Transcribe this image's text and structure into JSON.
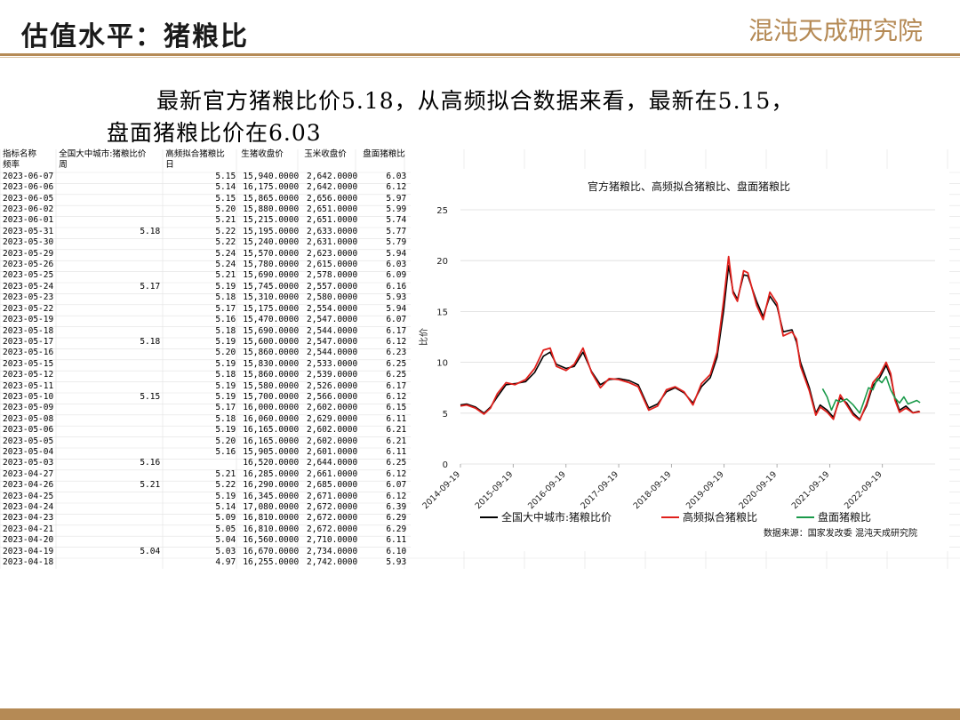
{
  "header": {
    "title": "估值水平：猪粮比",
    "logo_text": "混沌天成研究院"
  },
  "summary": {
    "line1": "最新官方猪粮比价5.18，从高频拟合数据来看，最新在5.15，",
    "line2": "盘面猪粮比价在6.03"
  },
  "table": {
    "header_row1": [
      "指标名称",
      "全国大中城市:猪粮比价",
      "高频拟合猪粮比",
      "生猪收盘价",
      "玉米收盘价",
      "盘面猪粮比"
    ],
    "header_row2": [
      "频率",
      "周",
      "日",
      "",
      "",
      ""
    ],
    "rows": [
      [
        "2023-06-07",
        "",
        "5.15",
        "15,940.0000",
        "2,642.0000",
        "6.03"
      ],
      [
        "2023-06-06",
        "",
        "5.14",
        "16,175.0000",
        "2,642.0000",
        "6.12"
      ],
      [
        "2023-06-05",
        "",
        "5.15",
        "15,865.0000",
        "2,656.0000",
        "5.97"
      ],
      [
        "2023-06-02",
        "",
        "5.20",
        "15,880.0000",
        "2,651.0000",
        "5.99"
      ],
      [
        "2023-06-01",
        "",
        "5.21",
        "15,215.0000",
        "2,651.0000",
        "5.74"
      ],
      [
        "2023-05-31",
        "5.18",
        "5.22",
        "15,195.0000",
        "2,633.0000",
        "5.77"
      ],
      [
        "2023-05-30",
        "",
        "5.22",
        "15,240.0000",
        "2,631.0000",
        "5.79"
      ],
      [
        "2023-05-29",
        "",
        "5.24",
        "15,570.0000",
        "2,623.0000",
        "5.94"
      ],
      [
        "2023-05-26",
        "",
        "5.24",
        "15,780.0000",
        "2,615.0000",
        "6.03"
      ],
      [
        "2023-05-25",
        "",
        "5.21",
        "15,690.0000",
        "2,578.0000",
        "6.09"
      ],
      [
        "2023-05-24",
        "5.17",
        "5.19",
        "15,745.0000",
        "2,557.0000",
        "6.16"
      ],
      [
        "2023-05-23",
        "",
        "5.18",
        "15,310.0000",
        "2,580.0000",
        "5.93"
      ],
      [
        "2023-05-22",
        "",
        "5.17",
        "15,175.0000",
        "2,554.0000",
        "5.94"
      ],
      [
        "2023-05-19",
        "",
        "5.16",
        "15,470.0000",
        "2,547.0000",
        "6.07"
      ],
      [
        "2023-05-18",
        "",
        "5.18",
        "15,690.0000",
        "2,544.0000",
        "6.17"
      ],
      [
        "2023-05-17",
        "5.18",
        "5.19",
        "15,600.0000",
        "2,547.0000",
        "6.12"
      ],
      [
        "2023-05-16",
        "",
        "5.20",
        "15,860.0000",
        "2,544.0000",
        "6.23"
      ],
      [
        "2023-05-15",
        "",
        "5.19",
        "15,830.0000",
        "2,533.0000",
        "6.25"
      ],
      [
        "2023-05-12",
        "",
        "5.18",
        "15,860.0000",
        "2,539.0000",
        "6.25"
      ],
      [
        "2023-05-11",
        "",
        "5.19",
        "15,580.0000",
        "2,526.0000",
        "6.17"
      ],
      [
        "2023-05-10",
        "5.15",
        "5.19",
        "15,700.0000",
        "2,566.0000",
        "6.12"
      ],
      [
        "2023-05-09",
        "",
        "5.17",
        "16,000.0000",
        "2,602.0000",
        "6.15"
      ],
      [
        "2023-05-08",
        "",
        "5.18",
        "16,060.0000",
        "2,629.0000",
        "6.11"
      ],
      [
        "2023-05-06",
        "",
        "5.19",
        "16,165.0000",
        "2,602.0000",
        "6.21"
      ],
      [
        "2023-05-05",
        "",
        "5.20",
        "16,165.0000",
        "2,602.0000",
        "6.21"
      ],
      [
        "2023-05-04",
        "",
        "5.16",
        "15,905.0000",
        "2,601.0000",
        "6.11"
      ],
      [
        "2023-05-03",
        "5.16",
        "",
        "16,520.0000",
        "2,644.0000",
        "6.25"
      ],
      [
        "2023-04-27",
        "",
        "5.21",
        "16,285.0000",
        "2,661.0000",
        "6.12"
      ],
      [
        "2023-04-26",
        "5.21",
        "5.22",
        "16,290.0000",
        "2,685.0000",
        "6.07"
      ],
      [
        "2023-04-25",
        "",
        "5.19",
        "16,345.0000",
        "2,671.0000",
        "6.12"
      ],
      [
        "2023-04-24",
        "",
        "5.14",
        "17,080.0000",
        "2,672.0000",
        "6.39"
      ],
      [
        "2023-04-23",
        "",
        "5.09",
        "16,810.0000",
        "2,672.0000",
        "6.29"
      ],
      [
        "2023-04-21",
        "",
        "5.05",
        "16,810.0000",
        "2,672.0000",
        "6.29"
      ],
      [
        "2023-04-20",
        "",
        "5.04",
        "16,560.0000",
        "2,710.0000",
        "6.11"
      ],
      [
        "2023-04-19",
        "5.04",
        "5.03",
        "16,670.0000",
        "2,734.0000",
        "6.10"
      ],
      [
        "2023-04-18",
        "",
        "4.97",
        "16,255.0000",
        "2,742.0000",
        "5.93"
      ]
    ]
  },
  "chart_data": {
    "type": "line",
    "title": "官方猪粮比、高频拟合猪粮比、盘面猪粮比",
    "ylabel": "比价",
    "xlabel": "",
    "ylim": [
      0,
      25
    ],
    "yticks": [
      0,
      5,
      10,
      15,
      20,
      25
    ],
    "xlim": [
      "2014-09-19",
      "2023-09-19"
    ],
    "xticks": [
      "2014-09-19",
      "2015-09-19",
      "2016-09-19",
      "2017-09-19",
      "2018-09-19",
      "2019-09-19",
      "2020-09-19",
      "2021-09-19",
      "2022-09-19"
    ],
    "legend_position": "bottom",
    "source": "数据来源：国家发改委  混沌天成研究院",
    "series": [
      {
        "name": "全国大中城市:猪粮比价",
        "color": "#000000",
        "points": [
          [
            "2014-09-19",
            5.8
          ],
          [
            "2014-11-01",
            5.9
          ],
          [
            "2015-01-01",
            5.6
          ],
          [
            "2015-03-01",
            5.0
          ],
          [
            "2015-04-15",
            5.6
          ],
          [
            "2015-06-01",
            6.6
          ],
          [
            "2015-08-01",
            7.8
          ],
          [
            "2015-10-01",
            7.9
          ],
          [
            "2015-12-15",
            8.1
          ],
          [
            "2016-02-15",
            9.0
          ],
          [
            "2016-04-15",
            10.6
          ],
          [
            "2016-06-01",
            11.0
          ],
          [
            "2016-07-15",
            9.8
          ],
          [
            "2016-09-19",
            9.4
          ],
          [
            "2016-11-15",
            9.6
          ],
          [
            "2017-01-15",
            11.0
          ],
          [
            "2017-03-15",
            9.1
          ],
          [
            "2017-05-15",
            7.8
          ],
          [
            "2017-07-15",
            8.3
          ],
          [
            "2017-09-19",
            8.4
          ],
          [
            "2017-12-01",
            8.2
          ],
          [
            "2018-02-01",
            7.8
          ],
          [
            "2018-04-15",
            5.5
          ],
          [
            "2018-06-15",
            5.9
          ],
          [
            "2018-08-15",
            7.1
          ],
          [
            "2018-10-15",
            7.5
          ],
          [
            "2018-12-15",
            7.0
          ],
          [
            "2019-02-15",
            6.0
          ],
          [
            "2019-04-15",
            7.6
          ],
          [
            "2019-06-15",
            8.5
          ],
          [
            "2019-08-01",
            10.5
          ],
          [
            "2019-09-15",
            15.0
          ],
          [
            "2019-10-20",
            19.5
          ],
          [
            "2019-11-20",
            17.0
          ],
          [
            "2019-12-20",
            16.2
          ],
          [
            "2020-02-01",
            18.6
          ],
          [
            "2020-03-01",
            18.5
          ],
          [
            "2020-05-01",
            16.0
          ],
          [
            "2020-06-15",
            14.5
          ],
          [
            "2020-08-01",
            16.5
          ],
          [
            "2020-09-19",
            15.5
          ],
          [
            "2020-11-01",
            13.0
          ],
          [
            "2021-01-01",
            13.2
          ],
          [
            "2021-02-01",
            12.0
          ],
          [
            "2021-03-01",
            10.0
          ],
          [
            "2021-05-01",
            7.5
          ],
          [
            "2021-06-15",
            5.0
          ],
          [
            "2021-07-15",
            5.8
          ],
          [
            "2021-09-01",
            5.3
          ],
          [
            "2021-10-15",
            4.6
          ],
          [
            "2021-12-01",
            6.5
          ],
          [
            "2022-01-15",
            6.0
          ],
          [
            "2022-03-01",
            5.0
          ],
          [
            "2022-04-15",
            4.4
          ],
          [
            "2022-06-01",
            5.7
          ],
          [
            "2022-07-15",
            7.7
          ],
          [
            "2022-09-01",
            8.5
          ],
          [
            "2022-10-15",
            9.7
          ],
          [
            "2022-11-15",
            8.6
          ],
          [
            "2022-12-15",
            6.5
          ],
          [
            "2023-01-15",
            5.3
          ],
          [
            "2023-03-01",
            5.7
          ],
          [
            "2023-04-19",
            5.04
          ],
          [
            "2023-05-31",
            5.18
          ]
        ]
      },
      {
        "name": "高频拟合猪粮比",
        "color": "#e0201c",
        "points": [
          [
            "2014-09-19",
            5.7
          ],
          [
            "2014-11-01",
            5.8
          ],
          [
            "2015-01-01",
            5.5
          ],
          [
            "2015-03-01",
            4.9
          ],
          [
            "2015-04-15",
            5.5
          ],
          [
            "2015-06-01",
            6.9
          ],
          [
            "2015-08-01",
            8.0
          ],
          [
            "2015-10-01",
            7.8
          ],
          [
            "2015-12-15",
            8.3
          ],
          [
            "2016-02-15",
            9.4
          ],
          [
            "2016-04-15",
            11.2
          ],
          [
            "2016-06-01",
            11.4
          ],
          [
            "2016-07-15",
            9.6
          ],
          [
            "2016-09-19",
            9.2
          ],
          [
            "2016-11-15",
            9.8
          ],
          [
            "2017-01-15",
            11.4
          ],
          [
            "2017-03-15",
            9.0
          ],
          [
            "2017-05-15",
            7.5
          ],
          [
            "2017-07-15",
            8.4
          ],
          [
            "2017-09-19",
            8.3
          ],
          [
            "2017-12-01",
            8.0
          ],
          [
            "2018-02-01",
            7.6
          ],
          [
            "2018-04-15",
            5.3
          ],
          [
            "2018-06-15",
            5.7
          ],
          [
            "2018-08-15",
            7.3
          ],
          [
            "2018-10-15",
            7.6
          ],
          [
            "2018-12-15",
            7.1
          ],
          [
            "2019-02-15",
            5.8
          ],
          [
            "2019-04-15",
            7.9
          ],
          [
            "2019-06-15",
            8.8
          ],
          [
            "2019-08-01",
            11.0
          ],
          [
            "2019-09-15",
            16.0
          ],
          [
            "2019-10-20",
            20.4
          ],
          [
            "2019-11-20",
            16.8
          ],
          [
            "2019-12-20",
            16.0
          ],
          [
            "2020-02-01",
            19.0
          ],
          [
            "2020-03-01",
            18.8
          ],
          [
            "2020-05-01",
            15.6
          ],
          [
            "2020-06-15",
            14.2
          ],
          [
            "2020-08-01",
            16.9
          ],
          [
            "2020-09-19",
            15.8
          ],
          [
            "2020-11-01",
            12.6
          ],
          [
            "2021-01-01",
            13.0
          ],
          [
            "2021-02-01",
            12.3
          ],
          [
            "2021-03-01",
            9.6
          ],
          [
            "2021-05-01",
            7.2
          ],
          [
            "2021-06-15",
            4.8
          ],
          [
            "2021-07-15",
            5.6
          ],
          [
            "2021-09-01",
            5.1
          ],
          [
            "2021-10-15",
            4.4
          ],
          [
            "2021-12-01",
            6.8
          ],
          [
            "2022-01-15",
            5.8
          ],
          [
            "2022-03-01",
            4.8
          ],
          [
            "2022-04-15",
            4.3
          ],
          [
            "2022-06-01",
            5.9
          ],
          [
            "2022-07-15",
            8.0
          ],
          [
            "2022-09-01",
            8.8
          ],
          [
            "2022-10-15",
            10.0
          ],
          [
            "2022-11-15",
            8.9
          ],
          [
            "2022-12-15",
            6.3
          ],
          [
            "2023-01-15",
            5.1
          ],
          [
            "2023-03-01",
            5.5
          ],
          [
            "2023-04-19",
            5.03
          ],
          [
            "2023-06-07",
            5.15
          ]
        ]
      },
      {
        "name": "盘面猪粮比",
        "color": "#1a9a4a",
        "points": [
          [
            "2021-08-01",
            7.4
          ],
          [
            "2021-09-01",
            6.6
          ],
          [
            "2021-10-01",
            5.3
          ],
          [
            "2021-11-01",
            6.3
          ],
          [
            "2021-12-01",
            6.1
          ],
          [
            "2022-01-15",
            6.4
          ],
          [
            "2022-03-01",
            5.8
          ],
          [
            "2022-04-15",
            5.0
          ],
          [
            "2022-05-15",
            6.2
          ],
          [
            "2022-06-15",
            7.5
          ],
          [
            "2022-07-15",
            7.3
          ],
          [
            "2022-08-15",
            8.4
          ],
          [
            "2022-09-15",
            8.0
          ],
          [
            "2022-10-15",
            8.6
          ],
          [
            "2022-11-15",
            7.3
          ],
          [
            "2022-12-15",
            6.5
          ],
          [
            "2023-01-15",
            6.0
          ],
          [
            "2023-02-15",
            6.6
          ],
          [
            "2023-03-15",
            5.9
          ],
          [
            "2023-04-19",
            6.1
          ],
          [
            "2023-05-15",
            6.25
          ],
          [
            "2023-06-07",
            6.03
          ]
        ]
      }
    ]
  }
}
